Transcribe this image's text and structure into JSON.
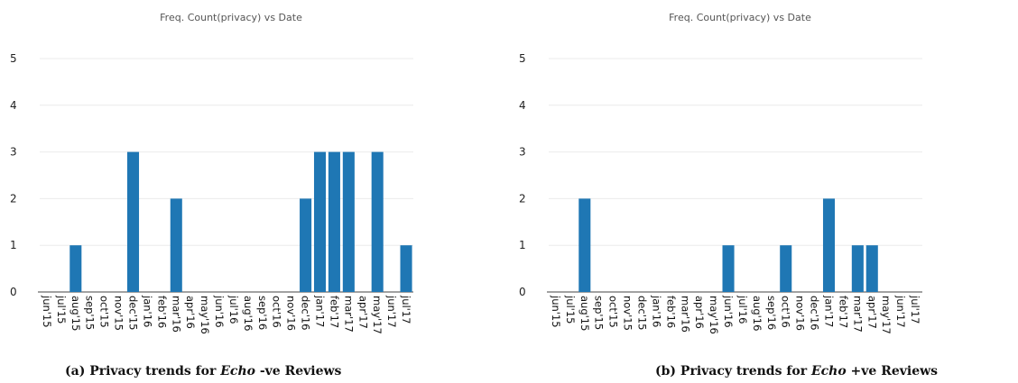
{
  "chart_data": [
    {
      "type": "bar",
      "title": "Freq. Count(privacy)  vs Date",
      "xlabel": "",
      "ylabel": "",
      "ylim": [
        0,
        5
      ],
      "yticks": [
        0,
        1,
        2,
        3,
        4,
        5
      ],
      "grid": true,
      "bar_color": "#1f77b4",
      "categories": [
        "jun'15",
        "jul'15",
        "aug'15",
        "sep'15",
        "oct'15",
        "nov'15",
        "dec'15",
        "jan'16",
        "feb'16",
        "mar'16",
        "apr'16",
        "may'16",
        "jun'16",
        "jul'16",
        "aug'16",
        "sep'16",
        "oct'16",
        "nov'16",
        "dec'16",
        "jan'17",
        "feb'17",
        "mar'17",
        "apr'17",
        "may'17",
        "jun'17",
        "jul'17"
      ],
      "values": [
        0,
        0,
        1,
        0,
        0,
        0,
        3,
        0,
        0,
        2,
        0,
        0,
        0,
        0,
        0,
        0,
        0,
        0,
        2,
        3,
        3,
        3,
        0,
        3,
        0,
        1
      ],
      "caption": {
        "prefix": "(a) Privacy trends for ",
        "emphasis": "Echo",
        "suffix": " -ve Reviews"
      }
    },
    {
      "type": "bar",
      "title": "Freq. Count(privacy)  vs Date",
      "xlabel": "",
      "ylabel": "",
      "ylim": [
        0,
        5
      ],
      "yticks": [
        0,
        1,
        2,
        3,
        4,
        5
      ],
      "grid": true,
      "bar_color": "#1f77b4",
      "categories": [
        "jun'15",
        "jul'15",
        "aug'15",
        "sep'15",
        "oct'15",
        "nov'15",
        "dec'15",
        "jan'16",
        "feb'16",
        "mar'16",
        "apr'16",
        "may'16",
        "jun'16",
        "jul'16",
        "aug'16",
        "sep'16",
        "oct'16",
        "nov'16",
        "dec'16",
        "jan'17",
        "feb'17",
        "mar'17",
        "apr'17",
        "may'17",
        "jun'17",
        "jul'17"
      ],
      "values": [
        0,
        0,
        2,
        0,
        0,
        0,
        0,
        0,
        0,
        0,
        0,
        0,
        1,
        0,
        0,
        0,
        1,
        0,
        0,
        2,
        0,
        1,
        1,
        0,
        0,
        0
      ],
      "caption": {
        "prefix": "(b) Privacy trends for ",
        "emphasis": "Echo",
        "suffix": " +ve Reviews"
      }
    }
  ]
}
